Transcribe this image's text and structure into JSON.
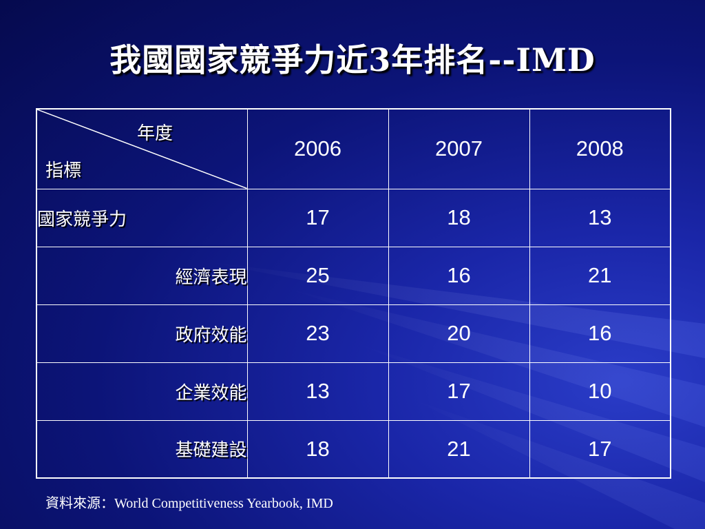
{
  "slide": {
    "title": "我國國家競爭力近3年排名--IMD",
    "source": "資料來源：World Competitiveness Yearbook, IMD"
  },
  "table": {
    "corner_top": "年度",
    "corner_bottom": "指標",
    "years": [
      "2006",
      "2007",
      "2008"
    ],
    "rows": [
      {
        "label": "國家競爭力",
        "values": [
          "17",
          "18",
          "13"
        ]
      },
      {
        "label": "經濟表現",
        "values": [
          "25",
          "16",
          "21"
        ]
      },
      {
        "label": "政府效能",
        "values": [
          "23",
          "20",
          "16"
        ]
      },
      {
        "label": "企業效能",
        "values": [
          "13",
          "17",
          "10"
        ]
      },
      {
        "label": "基礎建設",
        "values": [
          "18",
          "21",
          "17"
        ]
      }
    ]
  }
}
